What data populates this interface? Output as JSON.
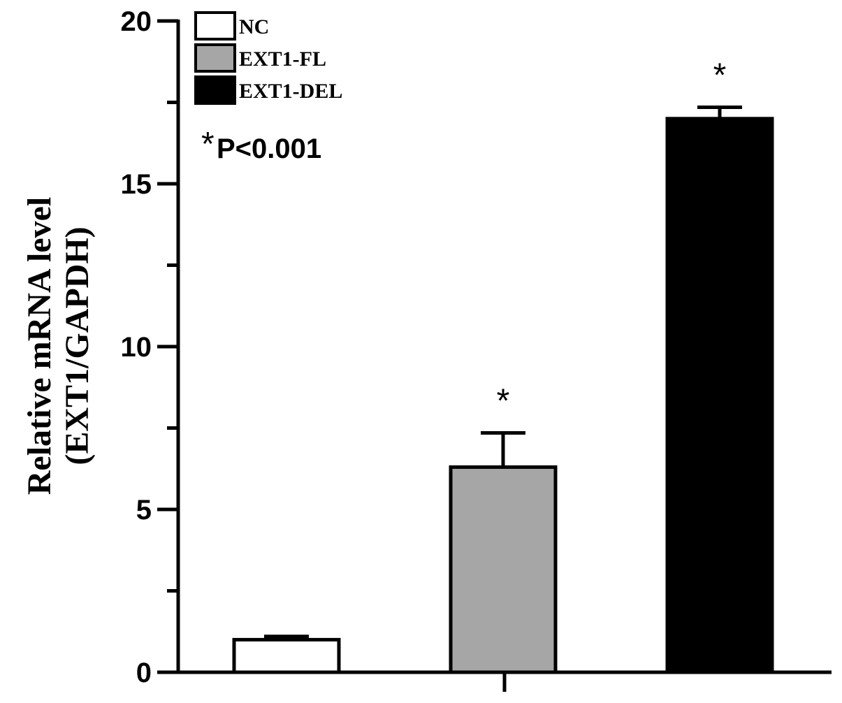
{
  "chart_data": {
    "type": "bar",
    "categories": [
      "NC",
      "EXT1-FL",
      "EXT1-DEL"
    ],
    "values": [
      1.0,
      6.3,
      17.0
    ],
    "errors": [
      0.1,
      1.05,
      0.35
    ],
    "colors": [
      "#ffffff",
      "#a6a6a6",
      "#000000"
    ],
    "significance": [
      "",
      "*",
      "*"
    ],
    "ylabel_line1": "Relative mRNA level",
    "ylabel_line2": "(EXT1/GAPDH)",
    "ylim": [
      0,
      20
    ],
    "yticks": [
      0,
      5,
      10,
      15,
      20
    ],
    "grid": false,
    "legend": {
      "position": "top-left",
      "entries": [
        "NC",
        "EXT1-FL",
        "EXT1-DEL"
      ]
    },
    "annotation": {
      "star": "*",
      "text": "P<0.001"
    }
  }
}
